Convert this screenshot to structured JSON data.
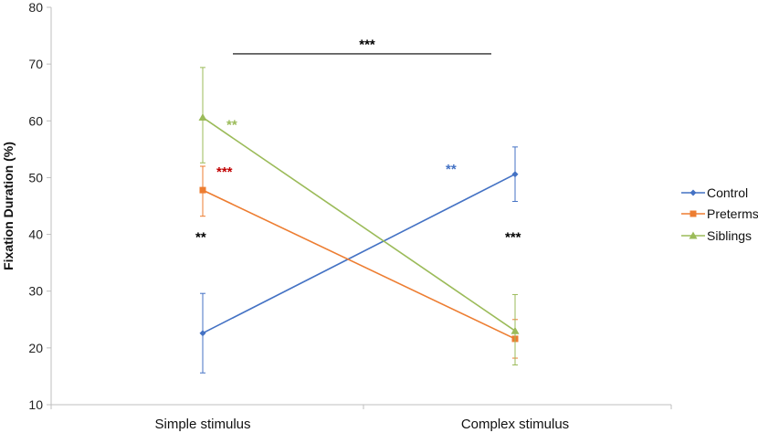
{
  "chart_data": {
    "type": "line",
    "ylabel": "Fixation Duration (%)",
    "xlabel": "",
    "categories": [
      "Simple stimulus",
      "Complex stimulus"
    ],
    "ylim": [
      10,
      80
    ],
    "yticks": [
      10,
      20,
      30,
      40,
      50,
      60,
      70,
      80
    ],
    "grid": false,
    "legend_position": "right",
    "series": [
      {
        "name": "Control",
        "color": "#4472C4",
        "marker": "diamond",
        "values": [
          22.6,
          50.6
        ],
        "error_low": [
          15.6,
          45.8
        ],
        "error_high": [
          29.6,
          55.4
        ]
      },
      {
        "name": "Preterms",
        "color": "#ED7D31",
        "marker": "square",
        "values": [
          47.8,
          21.6
        ],
        "error_low": [
          43.2,
          18.2
        ],
        "error_high": [
          52.0,
          25.0
        ]
      },
      {
        "name": "Siblings",
        "color": "#9BBB59",
        "marker": "triangle",
        "values": [
          60.6,
          23.0
        ],
        "error_low": [
          52.6,
          17.0
        ],
        "error_high": [
          69.4,
          29.4
        ]
      }
    ],
    "annotations": [
      {
        "text": "***",
        "color": "#000000",
        "category": "between",
        "y": 73.5,
        "kind": "bracket-label"
      },
      {
        "text": "**",
        "color": "#9BBB59",
        "category": 0,
        "y": 59.3
      },
      {
        "text": "***",
        "color": "#C00000",
        "category": 0,
        "y": 51.0
      },
      {
        "text": "**",
        "color": "#000000",
        "category": 0,
        "y": 39.5
      },
      {
        "text": "**",
        "color": "#4472C4",
        "category": 1,
        "y": 51.5
      },
      {
        "text": "***",
        "color": "#000000",
        "category": 1,
        "y": 39.5
      }
    ],
    "bracket": {
      "from_category": 0,
      "to_category": 1,
      "y": 71.8
    }
  }
}
